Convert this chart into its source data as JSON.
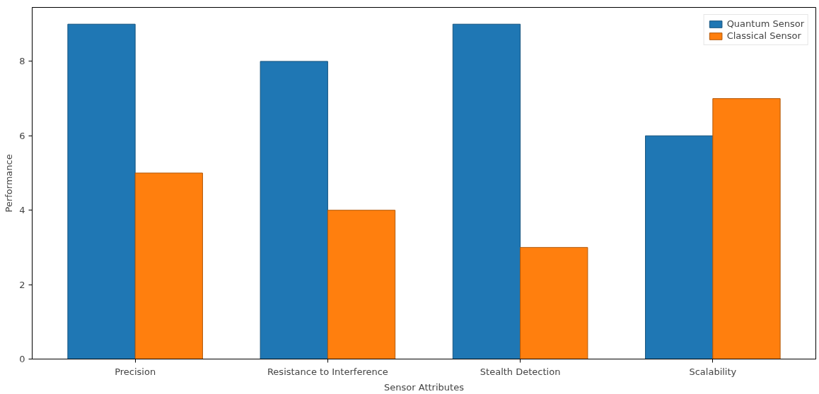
{
  "chart_data": {
    "type": "bar",
    "categories": [
      "Precision",
      "Resistance to Interference",
      "Stealth Detection",
      "Scalability"
    ],
    "series": [
      {
        "name": "Quantum Sensor",
        "color": "#1f77b4",
        "values": [
          9,
          8,
          9,
          6
        ]
      },
      {
        "name": "Classical Sensor",
        "color": "#ff7f0e",
        "values": [
          5,
          4,
          3,
          7
        ]
      }
    ],
    "xlabel": "Sensor Attributes",
    "ylabel": "Performance",
    "ylim": [
      0,
      9.45
    ],
    "yticks": [
      0,
      2,
      4,
      6,
      8
    ],
    "grid": false,
    "legend": "top right"
  }
}
